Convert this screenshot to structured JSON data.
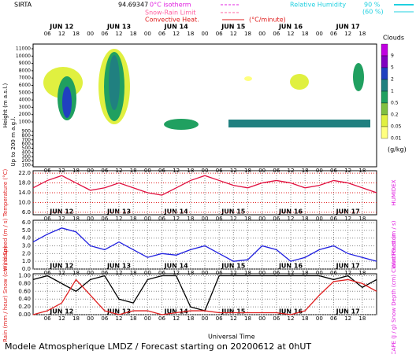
{
  "header": {
    "station": "SIRTA",
    "coord": "94.69347",
    "iso": "0°C isotherm",
    "snow": "Snow-Rain Limit",
    "conv": "Convective Heat.",
    "conv_unit": "(°C/minute)",
    "rh": "Relative Humidity",
    "rh90": "90 %",
    "rh60": "(60 %)"
  },
  "time_axis": {
    "days": [
      "JUN 12",
      "JUN 13",
      "JUN 14",
      "JUN 15",
      "JUN 16",
      "JUN 17"
    ],
    "hours": [
      "06",
      "12",
      "18",
      "00"
    ],
    "label": "Universal Time"
  },
  "footer": "Modele Atmospherique LMDZ / Forecast starting on 20200612 at 0hUT",
  "chart_data": [
    {
      "type": "contour",
      "ylabel": "Height (m a.s.l.)",
      "ylabel2": "Up to 200 m a.g.l.",
      "yticks": [
        11000,
        10000,
        9000,
        8000,
        7000,
        6000,
        5000,
        4000,
        3000,
        2000,
        1000,
        900,
        800,
        700,
        600,
        500,
        400,
        300,
        200,
        100
      ],
      "colorbar": {
        "title": "Clouds",
        "unit": "(g/kg)",
        "ticks": [
          {
            "value": 9,
            "label": "9"
          },
          {
            "value": 5,
            "label": "5"
          },
          {
            "value": 2,
            "label": "2"
          },
          {
            "value": 1,
            "label": "1"
          },
          {
            "value": 0.5,
            "label": "0.5"
          },
          {
            "value": 0.2,
            "label": "0.2"
          },
          {
            "value": 0.05,
            "label": "0.05"
          },
          {
            "value": 0.01,
            "label": "0.01"
          }
        ],
        "colors": [
          "#c000e0",
          "#8000c0",
          "#2040c0",
          "#208080",
          "#20a060",
          "#80c040",
          "#e0f040",
          "#ffff80"
        ]
      }
    },
    {
      "type": "line",
      "ylabel": "Temperature (°C)",
      "ylabel2": "HUMIDEX",
      "ylim": [
        5,
        23
      ],
      "yticks": [
        {
          "value": 22,
          "label": "22.0"
        },
        {
          "value": 18,
          "label": "18.0"
        },
        {
          "value": 14,
          "label": "14.0"
        },
        {
          "value": 10,
          "label": "10.0"
        },
        {
          "value": 6,
          "label": "6.0"
        }
      ],
      "x": [
        0,
        6,
        12,
        18,
        24,
        30,
        36,
        42,
        48,
        54,
        60,
        66,
        72,
        78,
        84,
        90,
        96,
        102,
        108,
        114,
        120,
        126,
        132,
        138,
        144
      ],
      "series": [
        {
          "color": "#e01040",
          "values": [
            16,
            19,
            21,
            18,
            15,
            16,
            18,
            16,
            14,
            13,
            16,
            19,
            21,
            19,
            17,
            16,
            18,
            19,
            18,
            16,
            17,
            19,
            18,
            16,
            14
          ]
        }
      ]
    },
    {
      "type": "line",
      "ylabel": "Wind Speed (m / s)",
      "ylabel2": "Wind Gust (m / s)",
      "ylim": [
        0,
        6.3
      ],
      "yticks": [
        {
          "value": 6,
          "label": "6.0"
        },
        {
          "value": 5,
          "label": "5.0"
        },
        {
          "value": 4,
          "label": "4.0"
        },
        {
          "value": 3,
          "label": "3.0"
        },
        {
          "value": 2,
          "label": "2.0"
        },
        {
          "value": 1,
          "label": "1.0"
        },
        {
          "value": 0,
          "label": "0.0"
        }
      ],
      "x": [
        0,
        6,
        12,
        18,
        24,
        30,
        36,
        42,
        48,
        54,
        60,
        66,
        72,
        78,
        84,
        90,
        96,
        102,
        108,
        114,
        120,
        126,
        132,
        138,
        144
      ],
      "series": [
        {
          "color": "#2020e0",
          "values": [
            3.5,
            4.5,
            5.3,
            4.8,
            3,
            2.5,
            3.5,
            2.5,
            1.5,
            2,
            1.8,
            2.5,
            3,
            2,
            1,
            1.2,
            3,
            2.5,
            1,
            1.5,
            2.5,
            3,
            2,
            1.5,
            1
          ]
        }
      ]
    },
    {
      "type": "line",
      "ylabel": "Rain (mm / hour) Snow (cm / hour)",
      "ylabel2": "CAPE (J / g) Snow Depth (cm) Cloud Fraction",
      "ylim": [
        0,
        1.05
      ],
      "yticks": [
        {
          "value": 1,
          "label": "1.00"
        },
        {
          "value": 0.8,
          "label": "0.80"
        },
        {
          "value": 0.6,
          "label": "0.60"
        },
        {
          "value": 0.4,
          "label": "0.40"
        },
        {
          "value": 0.2,
          "label": "0.20"
        },
        {
          "value": 0,
          "label": "0.00"
        }
      ],
      "x": [
        0,
        6,
        12,
        18,
        24,
        30,
        36,
        42,
        48,
        54,
        60,
        66,
        72,
        78,
        84,
        90,
        96,
        102,
        108,
        114,
        120,
        126,
        132,
        138,
        144
      ],
      "series": [
        {
          "color": "#000000",
          "values": [
            0.9,
            1,
            0.8,
            0.6,
            0.9,
            1,
            0.4,
            0.3,
            0.9,
            1,
            1,
            0.2,
            0.1,
            1,
            1,
            1,
            1,
            1,
            1,
            1,
            1,
            0.9,
            1,
            0.7,
            0.9
          ]
        },
        {
          "color": "#e02020",
          "values": [
            0,
            0.1,
            0.3,
            0.9,
            0.5,
            0.1,
            0,
            0.1,
            0.1,
            0,
            0.05,
            0.1,
            0.1,
            0.05,
            0.05,
            0.05,
            0.05,
            0.05,
            0,
            0.1,
            0.5,
            0.85,
            0.9,
            0.8,
            0.6
          ]
        }
      ]
    }
  ]
}
